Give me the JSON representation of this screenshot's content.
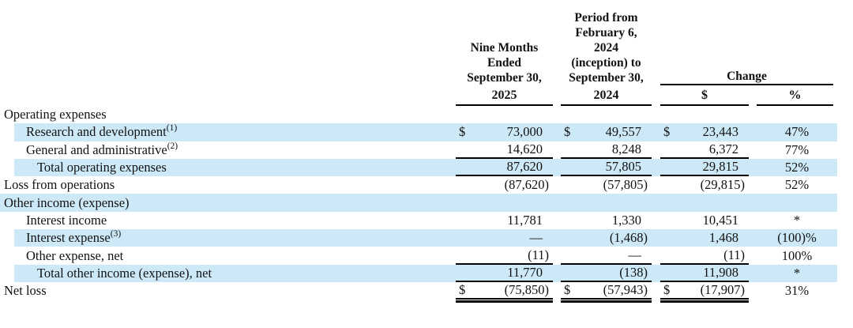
{
  "header": {
    "col1_lines": "Nine Months\nEnded\nSeptember 30,",
    "col1_year": "2025",
    "col2_lines": "Period from\nFebruary 6,\n2024\n(inception) to\nSeptember 30,",
    "col2_year": "2024",
    "change_label": "Change",
    "change_dollar_label": "$",
    "change_percent_label": "%"
  },
  "highlight_color": "#cde9f7",
  "rows": [
    {
      "label": "Operating expenses",
      "sup": "",
      "cur": "",
      "v1": "",
      "v2": "",
      "v3": "",
      "pct": ""
    },
    {
      "label": "Research and development",
      "sup": "(1)",
      "cur": "$",
      "v1": "73,000",
      "v2": "49,557",
      "v3": "23,443",
      "pct": "47%"
    },
    {
      "label": "General and administrative",
      "sup": "(2)",
      "cur": "",
      "v1": "14,620",
      "v2": "8,248",
      "v3": "6,372",
      "pct": "77%"
    },
    {
      "label": "Total operating expenses",
      "sup": "",
      "cur": "",
      "v1": "87,620",
      "v2": "57,805",
      "v3": "29,815",
      "pct": "52%"
    },
    {
      "label": "Loss from operations",
      "sup": "",
      "cur": "",
      "v1": "(87,620)",
      "v2": "(57,805)",
      "v3": "(29,815)",
      "pct": "52%"
    },
    {
      "label": "Other income (expense)",
      "sup": "",
      "cur": "",
      "v1": "",
      "v2": "",
      "v3": "",
      "pct": ""
    },
    {
      "label": "Interest income",
      "sup": "",
      "cur": "",
      "v1": "11,781",
      "v2": "1,330",
      "v3": "10,451",
      "pct": "*"
    },
    {
      "label": "Interest expense",
      "sup": "(3)",
      "cur": "",
      "v1": "—",
      "v2": "(1,468)",
      "v3": "1,468",
      "pct": "(100)%"
    },
    {
      "label": "Other expense, net",
      "sup": "",
      "cur": "",
      "v1": "(11)",
      "v2": "—",
      "v3": "(11)",
      "pct": "100%"
    },
    {
      "label": "Total other income (expense), net",
      "sup": "",
      "cur": "",
      "v1": "11,770",
      "v2": "(138)",
      "v3": "11,908",
      "pct": "*"
    },
    {
      "label": "Net loss",
      "sup": "",
      "cur": "$",
      "v1": "(75,850)",
      "v2": "(57,943)",
      "v3": "(17,907)",
      "pct": "31%"
    }
  ]
}
